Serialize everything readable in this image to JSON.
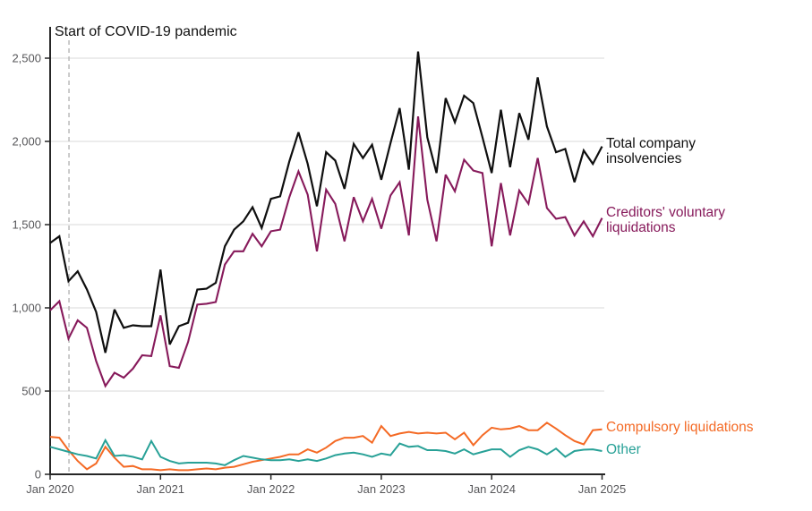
{
  "chart_data": {
    "type": "line",
    "frequency": "monthly",
    "x_start": "Jan 2020",
    "x_end": "Jan 2025",
    "grid": "horizontal",
    "legend_position": "right-of-line-labels",
    "annotation": {
      "text": "Start of COVID-19 pandemic",
      "month_index": 2
    },
    "x_ticks": {
      "month_indices": [
        0,
        12,
        24,
        36,
        48,
        60
      ],
      "labels": [
        "Jan 2020",
        "Jan 2021",
        "Jan 2022",
        "Jan 2023",
        "Jan 2024",
        "Jan 2025"
      ]
    },
    "y_ticks": {
      "values": [
        0,
        500,
        1000,
        1500,
        2000,
        2500
      ],
      "labels": [
        "0",
        "500",
        "1,000",
        "1,500",
        "2,000",
        "2,500"
      ]
    },
    "ylim": [
      0,
      2700
    ],
    "colors": {
      "total": "#0f0f0f",
      "cvl": "#871a5b",
      "compulsory": "#f46a25",
      "other": "#28a197",
      "gridline": "#d9d9d9",
      "axis": "#262626",
      "tick_text": "#57575a",
      "dashed_line": "#bbbbbb"
    },
    "series": [
      {
        "name": "Total company insolvencies",
        "label_lines": [
          "Total company",
          "insolvencies"
        ],
        "color": "#0f0f0f",
        "width": 2.2,
        "values": [
          1390,
          1430,
          1160,
          1220,
          1110,
          975,
          730,
          990,
          880,
          895,
          890,
          890,
          1230,
          780,
          890,
          910,
          1110,
          1115,
          1150,
          1370,
          1470,
          1520,
          1605,
          1480,
          1655,
          1670,
          1880,
          2055,
          1865,
          1610,
          1935,
          1885,
          1715,
          1985,
          1900,
          1980,
          1770,
          1990,
          2200,
          1830,
          2540,
          2025,
          1810,
          2260,
          2115,
          2275,
          2230,
          2025,
          1810,
          2190,
          1845,
          2170,
          2010,
          2385,
          2090,
          1935,
          1955,
          1755,
          1945,
          1865,
          1970
        ]
      },
      {
        "name": "Creditors' voluntary liquidations",
        "label_lines": [
          "Creditors' voluntary",
          "liquidations"
        ],
        "color": "#871a5b",
        "width": 2.1,
        "values": [
          985,
          1040,
          815,
          925,
          880,
          680,
          530,
          610,
          580,
          635,
          715,
          710,
          955,
          650,
          640,
          795,
          1020,
          1025,
          1035,
          1260,
          1340,
          1340,
          1445,
          1370,
          1460,
          1470,
          1665,
          1820,
          1680,
          1340,
          1710,
          1625,
          1400,
          1665,
          1520,
          1655,
          1475,
          1675,
          1755,
          1435,
          2150,
          1650,
          1400,
          1800,
          1700,
          1890,
          1825,
          1810,
          1370,
          1750,
          1435,
          1705,
          1625,
          1900,
          1600,
          1535,
          1545,
          1435,
          1520,
          1430,
          1540
        ]
      },
      {
        "name": "Compulsory liquidations",
        "label_lines": [
          "Compulsory liquidations"
        ],
        "color": "#f46a25",
        "width": 2,
        "values": [
          225,
          220,
          145,
          80,
          30,
          65,
          165,
          100,
          45,
          50,
          30,
          30,
          25,
          30,
          25,
          25,
          30,
          35,
          30,
          40,
          45,
          60,
          75,
          85,
          95,
          105,
          120,
          120,
          150,
          130,
          160,
          200,
          220,
          220,
          230,
          190,
          290,
          230,
          245,
          255,
          245,
          250,
          245,
          250,
          210,
          250,
          175,
          235,
          280,
          270,
          275,
          290,
          265,
          265,
          310,
          275,
          235,
          200,
          180,
          265,
          270
        ]
      },
      {
        "name": "Other",
        "label_lines": [
          "Other"
        ],
        "color": "#28a197",
        "width": 2,
        "values": [
          165,
          150,
          135,
          120,
          110,
          95,
          205,
          110,
          115,
          105,
          90,
          200,
          105,
          80,
          65,
          70,
          70,
          70,
          65,
          55,
          85,
          110,
          100,
          90,
          85,
          85,
          90,
          80,
          90,
          80,
          95,
          115,
          125,
          130,
          120,
          105,
          125,
          115,
          185,
          165,
          170,
          145,
          145,
          140,
          125,
          150,
          120,
          135,
          150,
          150,
          105,
          145,
          165,
          150,
          120,
          155,
          105,
          140,
          148,
          150,
          140
        ]
      }
    ]
  }
}
